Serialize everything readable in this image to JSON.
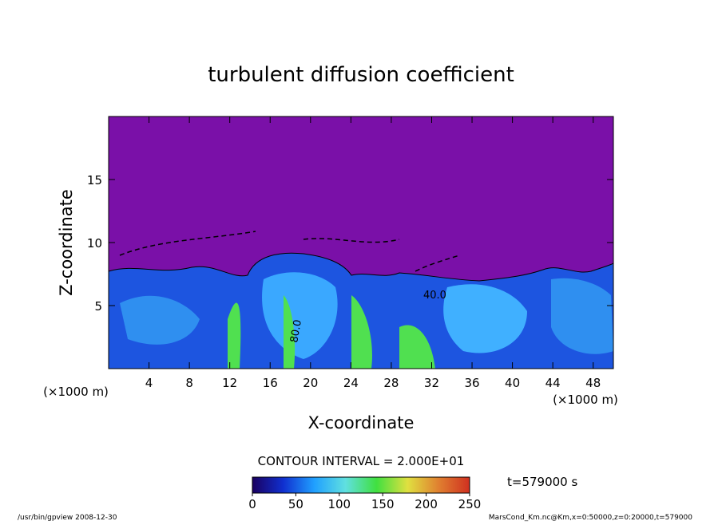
{
  "chart_data": {
    "type": "contour",
    "title": "turbulent diffusion coefficient",
    "x_label": "X-coordinate",
    "y_label": "Z-coordinate",
    "x_unit_label": "(×1000 m)",
    "y_unit_label": "(×1000 m)",
    "xlim": [
      0,
      50
    ],
    "xticks": [
      4,
      8,
      12,
      16,
      20,
      24,
      28,
      32,
      36,
      40,
      44,
      48
    ],
    "ylim": [
      0,
      20
    ],
    "yticks": [
      5,
      10,
      15
    ],
    "contour_labels": [
      "40.0",
      "80.0"
    ],
    "contour_interval": "CONTOUR INTERVAL = 2.000E+01",
    "time_label": "t=579000 s",
    "colorbar": {
      "lim": [
        0,
        250
      ],
      "ticks": [
        0,
        50,
        100,
        150,
        200,
        250
      ],
      "colors": [
        "#1a0060",
        "#1030d0",
        "#20a0ff",
        "#60e0e0",
        "#40e040",
        "#e0e040",
        "#e08030",
        "#d03020"
      ]
    },
    "footer_left": "/usr/bin/gpview   2008-12-30",
    "footer_right": "MarsCond_Km.nc@Km,x=0:50000,z=0:20000,t=579000"
  }
}
